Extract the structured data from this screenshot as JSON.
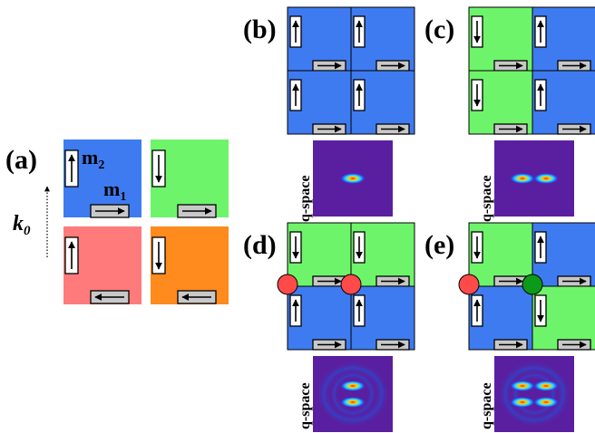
{
  "panels": {
    "a": {
      "label": "(a)",
      "wavevector_label": "k",
      "wavevector_subscript": "0",
      "moment_2_label": "m",
      "moment_2_subscript": "2",
      "moment_1_label": "m",
      "moment_1_subscript": "1"
    },
    "b": {
      "label": "(b)",
      "qspace_label": "q-space"
    },
    "c": {
      "label": "(c)",
      "qspace_label": "q-space"
    },
    "d": {
      "label": "(d)",
      "qspace_label": "q-space"
    },
    "e": {
      "label": "(e)",
      "qspace_label": "q-space"
    }
  },
  "colors": {
    "blue": "#3f7bf0",
    "green": "#6ef46a",
    "pink": "#ff7b7b",
    "orange": "#ff8a1e",
    "gray_box": "#c8c8c8",
    "defect_red": "#ff4a4a",
    "defect_green": "#0b9a1a",
    "qspace_bg": "#5a1fa0"
  },
  "icons": {
    "vertical_moment": "arrow-box-icon",
    "horizontal_moment": "arrow-box-icon",
    "defect_marker": "circle-icon"
  }
}
